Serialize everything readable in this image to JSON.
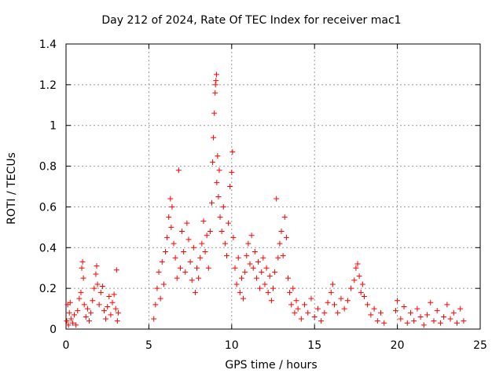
{
  "chart_data": {
    "type": "scatter",
    "title": "Day 212 of 2024, Rate Of TEC Index for receiver mac1",
    "xlabel": "GPS time / hours",
    "ylabel": "ROTI / TECUs",
    "xlim": [
      0,
      25
    ],
    "ylim": [
      0,
      1.4
    ],
    "xticks": [
      0,
      5,
      10,
      15,
      20,
      25
    ],
    "xtick_labels": [
      "0",
      "5",
      "10",
      "15",
      "20",
      "25"
    ],
    "yticks": [
      0,
      0.2,
      0.4,
      0.6,
      0.8,
      1.0,
      1.2,
      1.4
    ],
    "ytick_labels": [
      "0",
      "0.2",
      "0.4",
      "0.6",
      "0.8",
      "1",
      "1.2",
      "1.4"
    ],
    "grid": true,
    "marker": "+",
    "color": "#ff0000",
    "series": [
      {
        "name": "ROTI",
        "points": [
          [
            0.05,
            0.04
          ],
          [
            0.1,
            0.12
          ],
          [
            0.15,
            0.02
          ],
          [
            0.2,
            0.08
          ],
          [
            0.25,
            0.13
          ],
          [
            0.3,
            0.05
          ],
          [
            0.4,
            0.03
          ],
          [
            0.5,
            0.07
          ],
          [
            0.6,
            0.02
          ],
          [
            0.7,
            0.09
          ],
          [
            0.8,
            0.15
          ],
          [
            0.9,
            0.18
          ],
          [
            0.95,
            0.3
          ],
          [
            1.0,
            0.33
          ],
          [
            1.05,
            0.25
          ],
          [
            1.1,
            0.12
          ],
          [
            1.2,
            0.06
          ],
          [
            1.3,
            0.1
          ],
          [
            1.4,
            0.04
          ],
          [
            1.5,
            0.08
          ],
          [
            1.6,
            0.14
          ],
          [
            1.7,
            0.2
          ],
          [
            1.8,
            0.27
          ],
          [
            1.85,
            0.31
          ],
          [
            1.9,
            0.22
          ],
          [
            2.0,
            0.12
          ],
          [
            2.1,
            0.18
          ],
          [
            2.2,
            0.21
          ],
          [
            2.3,
            0.09
          ],
          [
            2.4,
            0.05
          ],
          [
            2.5,
            0.11
          ],
          [
            2.6,
            0.16
          ],
          [
            2.7,
            0.07
          ],
          [
            2.8,
            0.13
          ],
          [
            2.9,
            0.17
          ],
          [
            3.0,
            0.1
          ],
          [
            3.05,
            0.29
          ],
          [
            3.1,
            0.04
          ],
          [
            3.15,
            0.08
          ],
          [
            5.3,
            0.05
          ],
          [
            5.4,
            0.12
          ],
          [
            5.5,
            0.2
          ],
          [
            5.6,
            0.28
          ],
          [
            5.7,
            0.15
          ],
          [
            5.8,
            0.33
          ],
          [
            5.9,
            0.22
          ],
          [
            6.0,
            0.38
          ],
          [
            6.1,
            0.45
          ],
          [
            6.2,
            0.55
          ],
          [
            6.3,
            0.64
          ],
          [
            6.35,
            0.5
          ],
          [
            6.4,
            0.6
          ],
          [
            6.5,
            0.42
          ],
          [
            6.6,
            0.35
          ],
          [
            6.7,
            0.25
          ],
          [
            6.8,
            0.78
          ],
          [
            6.9,
            0.3
          ],
          [
            7.0,
            0.48
          ],
          [
            7.1,
            0.38
          ],
          [
            7.2,
            0.28
          ],
          [
            7.3,
            0.52
          ],
          [
            7.4,
            0.44
          ],
          [
            7.5,
            0.33
          ],
          [
            7.6,
            0.24
          ],
          [
            7.7,
            0.4
          ],
          [
            7.8,
            0.18
          ],
          [
            7.9,
            0.3
          ],
          [
            8.0,
            0.25
          ],
          [
            8.1,
            0.35
          ],
          [
            8.2,
            0.42
          ],
          [
            8.3,
            0.53
          ],
          [
            8.4,
            0.38
          ],
          [
            8.5,
            0.46
          ],
          [
            8.6,
            0.3
          ],
          [
            8.7,
            0.48
          ],
          [
            8.8,
            0.62
          ],
          [
            8.85,
            0.82
          ],
          [
            8.9,
            0.94
          ],
          [
            8.95,
            1.06
          ],
          [
            9.0,
            1.16
          ],
          [
            9.02,
            1.2
          ],
          [
            9.05,
            1.22
          ],
          [
            9.08,
            1.25
          ],
          [
            9.1,
            0.72
          ],
          [
            9.15,
            0.85
          ],
          [
            9.2,
            0.65
          ],
          [
            9.25,
            0.78
          ],
          [
            9.3,
            0.55
          ],
          [
            9.4,
            0.48
          ],
          [
            9.5,
            0.6
          ],
          [
            9.6,
            0.42
          ],
          [
            9.7,
            0.36
          ],
          [
            9.8,
            0.52
          ],
          [
            9.9,
            0.7
          ],
          [
            10.0,
            0.77
          ],
          [
            10.05,
            0.87
          ],
          [
            10.1,
            0.45
          ],
          [
            10.2,
            0.3
          ],
          [
            10.3,
            0.22
          ],
          [
            10.4,
            0.35
          ],
          [
            10.5,
            0.18
          ],
          [
            10.6,
            0.25
          ],
          [
            10.7,
            0.15
          ],
          [
            10.8,
            0.28
          ],
          [
            10.9,
            0.36
          ],
          [
            11.0,
            0.42
          ],
          [
            11.1,
            0.32
          ],
          [
            11.2,
            0.46
          ],
          [
            11.3,
            0.3
          ],
          [
            11.4,
            0.38
          ],
          [
            11.5,
            0.25
          ],
          [
            11.6,
            0.33
          ],
          [
            11.7,
            0.2
          ],
          [
            11.8,
            0.28
          ],
          [
            11.9,
            0.35
          ],
          [
            12.0,
            0.22
          ],
          [
            12.1,
            0.3
          ],
          [
            12.2,
            0.18
          ],
          [
            12.3,
            0.26
          ],
          [
            12.4,
            0.14
          ],
          [
            12.5,
            0.2
          ],
          [
            12.6,
            0.28
          ],
          [
            12.7,
            0.64
          ],
          [
            12.8,
            0.35
          ],
          [
            12.9,
            0.42
          ],
          [
            13.0,
            0.48
          ],
          [
            13.1,
            0.36
          ],
          [
            13.2,
            0.55
          ],
          [
            13.3,
            0.45
          ],
          [
            13.4,
            0.25
          ],
          [
            13.5,
            0.18
          ],
          [
            13.6,
            0.12
          ],
          [
            13.7,
            0.2
          ],
          [
            13.8,
            0.08
          ],
          [
            13.9,
            0.14
          ],
          [
            14.0,
            0.1
          ],
          [
            14.2,
            0.05
          ],
          [
            14.4,
            0.12
          ],
          [
            14.6,
            0.08
          ],
          [
            14.8,
            0.15
          ],
          [
            15.0,
            0.06
          ],
          [
            15.2,
            0.1
          ],
          [
            15.4,
            0.04
          ],
          [
            15.6,
            0.08
          ],
          [
            15.8,
            0.13
          ],
          [
            16.0,
            0.18
          ],
          [
            16.1,
            0.22
          ],
          [
            16.2,
            0.12
          ],
          [
            16.4,
            0.08
          ],
          [
            16.6,
            0.15
          ],
          [
            16.8,
            0.1
          ],
          [
            17.0,
            0.14
          ],
          [
            17.2,
            0.2
          ],
          [
            17.4,
            0.24
          ],
          [
            17.5,
            0.3
          ],
          [
            17.6,
            0.32
          ],
          [
            17.7,
            0.26
          ],
          [
            17.8,
            0.18
          ],
          [
            17.9,
            0.22
          ],
          [
            18.0,
            0.16
          ],
          [
            18.2,
            0.12
          ],
          [
            18.4,
            0.07
          ],
          [
            18.6,
            0.1
          ],
          [
            18.8,
            0.04
          ],
          [
            19.0,
            0.08
          ],
          [
            19.2,
            0.03
          ],
          [
            19.9,
            0.09
          ],
          [
            20.0,
            0.14
          ],
          [
            20.2,
            0.05
          ],
          [
            20.4,
            0.11
          ],
          [
            20.6,
            0.03
          ],
          [
            20.8,
            0.08
          ],
          [
            21.0,
            0.04
          ],
          [
            21.2,
            0.1
          ],
          [
            21.4,
            0.06
          ],
          [
            21.6,
            0.02
          ],
          [
            21.8,
            0.07
          ],
          [
            22.0,
            0.13
          ],
          [
            22.2,
            0.04
          ],
          [
            22.4,
            0.09
          ],
          [
            22.6,
            0.03
          ],
          [
            22.8,
            0.06
          ],
          [
            23.0,
            0.12
          ],
          [
            23.2,
            0.05
          ],
          [
            23.4,
            0.08
          ],
          [
            23.6,
            0.03
          ],
          [
            23.8,
            0.1
          ],
          [
            24.0,
            0.04
          ]
        ]
      }
    ]
  }
}
